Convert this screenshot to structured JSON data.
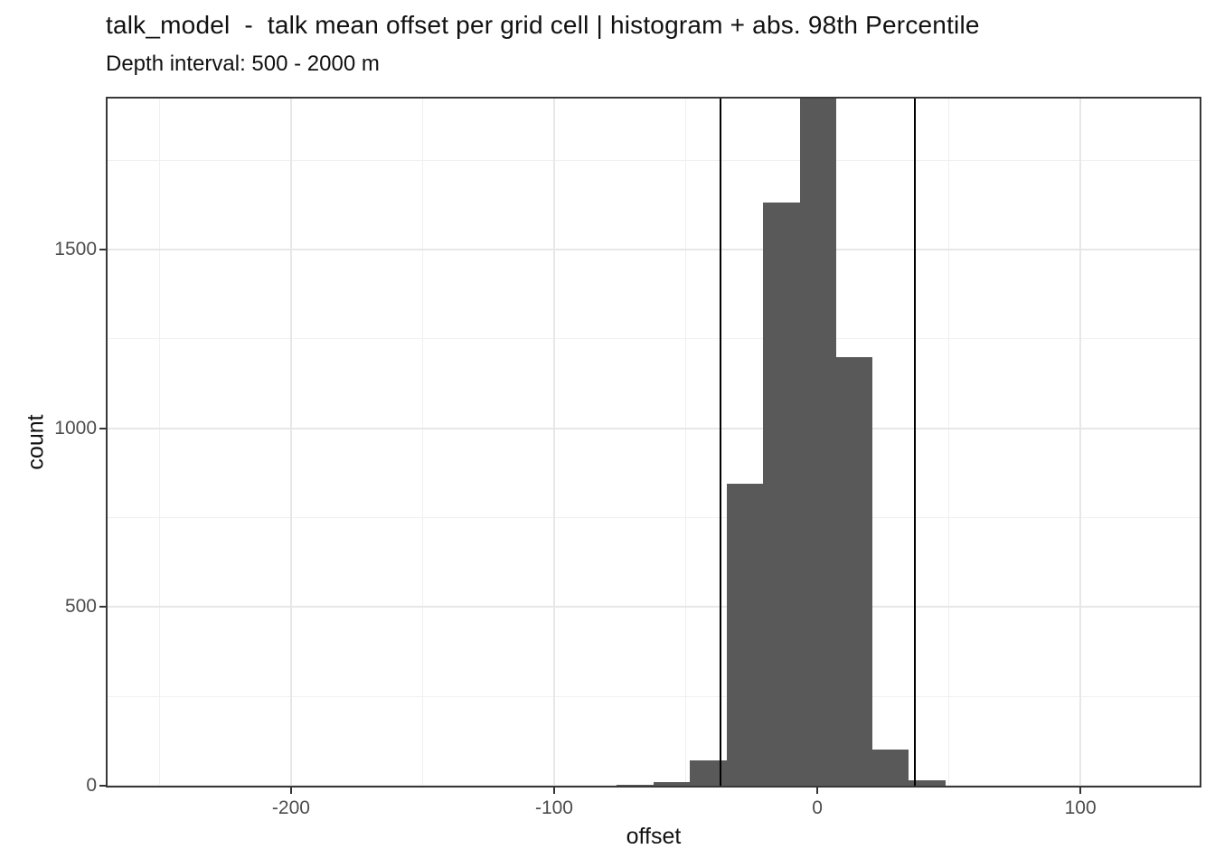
{
  "chart_data": {
    "type": "bar",
    "subtype": "histogram",
    "title": "talk_model  -  talk mean offset per grid cell | histogram + abs. 98th Percentile",
    "subtitle": "Depth interval: 500 - 2000 m",
    "xlabel": "offset",
    "ylabel": "count",
    "x_range": [
      -270.4,
      146.0
    ],
    "y_range": [
      -5,
      1928
    ],
    "grid": true,
    "legend": "none",
    "x_ticks": [
      {
        "value": -200,
        "label": "-200"
      },
      {
        "value": -100,
        "label": "-100"
      },
      {
        "value": 0,
        "label": "0"
      },
      {
        "value": 100,
        "label": "100"
      }
    ],
    "y_ticks": [
      {
        "value": 0,
        "label": "0"
      },
      {
        "value": 500,
        "label": "500"
      },
      {
        "value": 1000,
        "label": "1000"
      },
      {
        "value": 1500,
        "label": "1500"
      }
    ],
    "x_minor": [
      -250,
      -150,
      -50,
      50
    ],
    "y_minor": [
      250,
      750,
      1250,
      1750
    ],
    "bins": [
      {
        "x0": -76.3,
        "x1": -62.2,
        "count": 3
      },
      {
        "x0": -62.2,
        "x1": -48.3,
        "count": 10
      },
      {
        "x0": -48.3,
        "x1": -34.4,
        "count": 72
      },
      {
        "x0": -34.4,
        "x1": -20.6,
        "count": 845
      },
      {
        "x0": -20.6,
        "x1": -6.5,
        "count": 1632
      },
      {
        "x0": -6.5,
        "x1": 7.2,
        "count": 1950,
        "clipped_at_top": true
      },
      {
        "x0": 7.2,
        "x1": 21.0,
        "count": 1200
      },
      {
        "x0": 21.0,
        "x1": 34.7,
        "count": 101
      },
      {
        "x0": 34.7,
        "x1": 48.8,
        "count": 15
      }
    ],
    "vlines": {
      "label": "abs. 98th Percentile",
      "values": [
        -36.7,
        37.0
      ],
      "color": "#000000"
    },
    "colors": {
      "bar": "#595959",
      "major_grid": "#E7E7E7",
      "minor_grid": "#F0F0F0",
      "panel_border": "#383838",
      "tick": "#333333",
      "tick_label": "#4D4D4D",
      "text": "#111111",
      "background": "#FFFFFF"
    }
  }
}
